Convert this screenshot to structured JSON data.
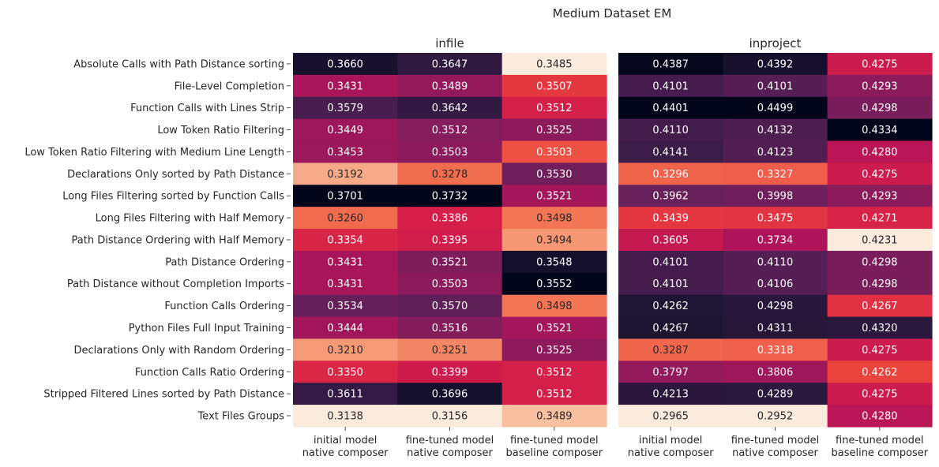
{
  "chart_data": {
    "type": "heatmap",
    "title": "Medium Dataset EM",
    "row_labels": [
      "Absolute Calls with Path Distance sorting",
      "File-Level Completion",
      "Function Calls with Lines Strip",
      "Low Token Ratio Filtering",
      "Low Token Ratio Filtering with Medium Line Length",
      "Declarations Only sorted by Path Distance",
      "Long Files Filtering sorted by Function Calls",
      "Long Files Filtering with Half Memory",
      "Path Distance Ordering with Half Memory",
      "Path Distance Ordering",
      "Path Distance without Completion Imports",
      "Function Calls Ordering",
      "Python Files Full Input Training",
      "Declarations Only with Random Ordering",
      "Function Calls Ratio Ordering",
      "Stripped Filtered Lines sorted by Path Distance",
      "Text Files Groups"
    ],
    "column_labels": [
      [
        "initial model",
        "native composer"
      ],
      [
        "fine-tuned model",
        "native composer"
      ],
      [
        "fine-tuned model",
        "baseline composer"
      ]
    ],
    "colormap": "rocket (per column, dark = high, light = low)",
    "grid": false,
    "panels": [
      {
        "title": "infile",
        "values": [
          [
            0.366,
            0.3647,
            0.3485
          ],
          [
            0.3431,
            0.3489,
            0.3507
          ],
          [
            0.3579,
            0.3642,
            0.3512
          ],
          [
            0.3449,
            0.3512,
            0.3525
          ],
          [
            0.3453,
            0.3503,
            0.3503
          ],
          [
            0.3192,
            0.3278,
            0.353
          ],
          [
            0.3701,
            0.3732,
            0.3521
          ],
          [
            0.326,
            0.3386,
            0.3498
          ],
          [
            0.3354,
            0.3395,
            0.3494
          ],
          [
            0.3431,
            0.3521,
            0.3548
          ],
          [
            0.3431,
            0.3503,
            0.3552
          ],
          [
            0.3534,
            0.357,
            0.3498
          ],
          [
            0.3444,
            0.3516,
            0.3521
          ],
          [
            0.321,
            0.3251,
            0.3525
          ],
          [
            0.335,
            0.3399,
            0.3512
          ],
          [
            0.3611,
            0.3696,
            0.3512
          ],
          [
            0.3138,
            0.3156,
            0.3489
          ]
        ]
      },
      {
        "title": "inproject",
        "values": [
          [
            0.4387,
            0.4392,
            0.4275
          ],
          [
            0.4101,
            0.4101,
            0.4293
          ],
          [
            0.4401,
            0.4499,
            0.4298
          ],
          [
            0.411,
            0.4132,
            0.4334
          ],
          [
            0.4141,
            0.4123,
            0.428
          ],
          [
            0.3296,
            0.3327,
            0.4275
          ],
          [
            0.3962,
            0.3998,
            0.4293
          ],
          [
            0.3439,
            0.3475,
            0.4271
          ],
          [
            0.3605,
            0.3734,
            0.4231
          ],
          [
            0.4101,
            0.411,
            0.4298
          ],
          [
            0.4101,
            0.4106,
            0.4298
          ],
          [
            0.4262,
            0.4298,
            0.4267
          ],
          [
            0.4267,
            0.4311,
            0.432
          ],
          [
            0.3287,
            0.3318,
            0.4275
          ],
          [
            0.3797,
            0.3806,
            0.4262
          ],
          [
            0.4213,
            0.4289,
            0.4275
          ],
          [
            0.2965,
            0.2952,
            0.428
          ]
        ]
      }
    ]
  }
}
